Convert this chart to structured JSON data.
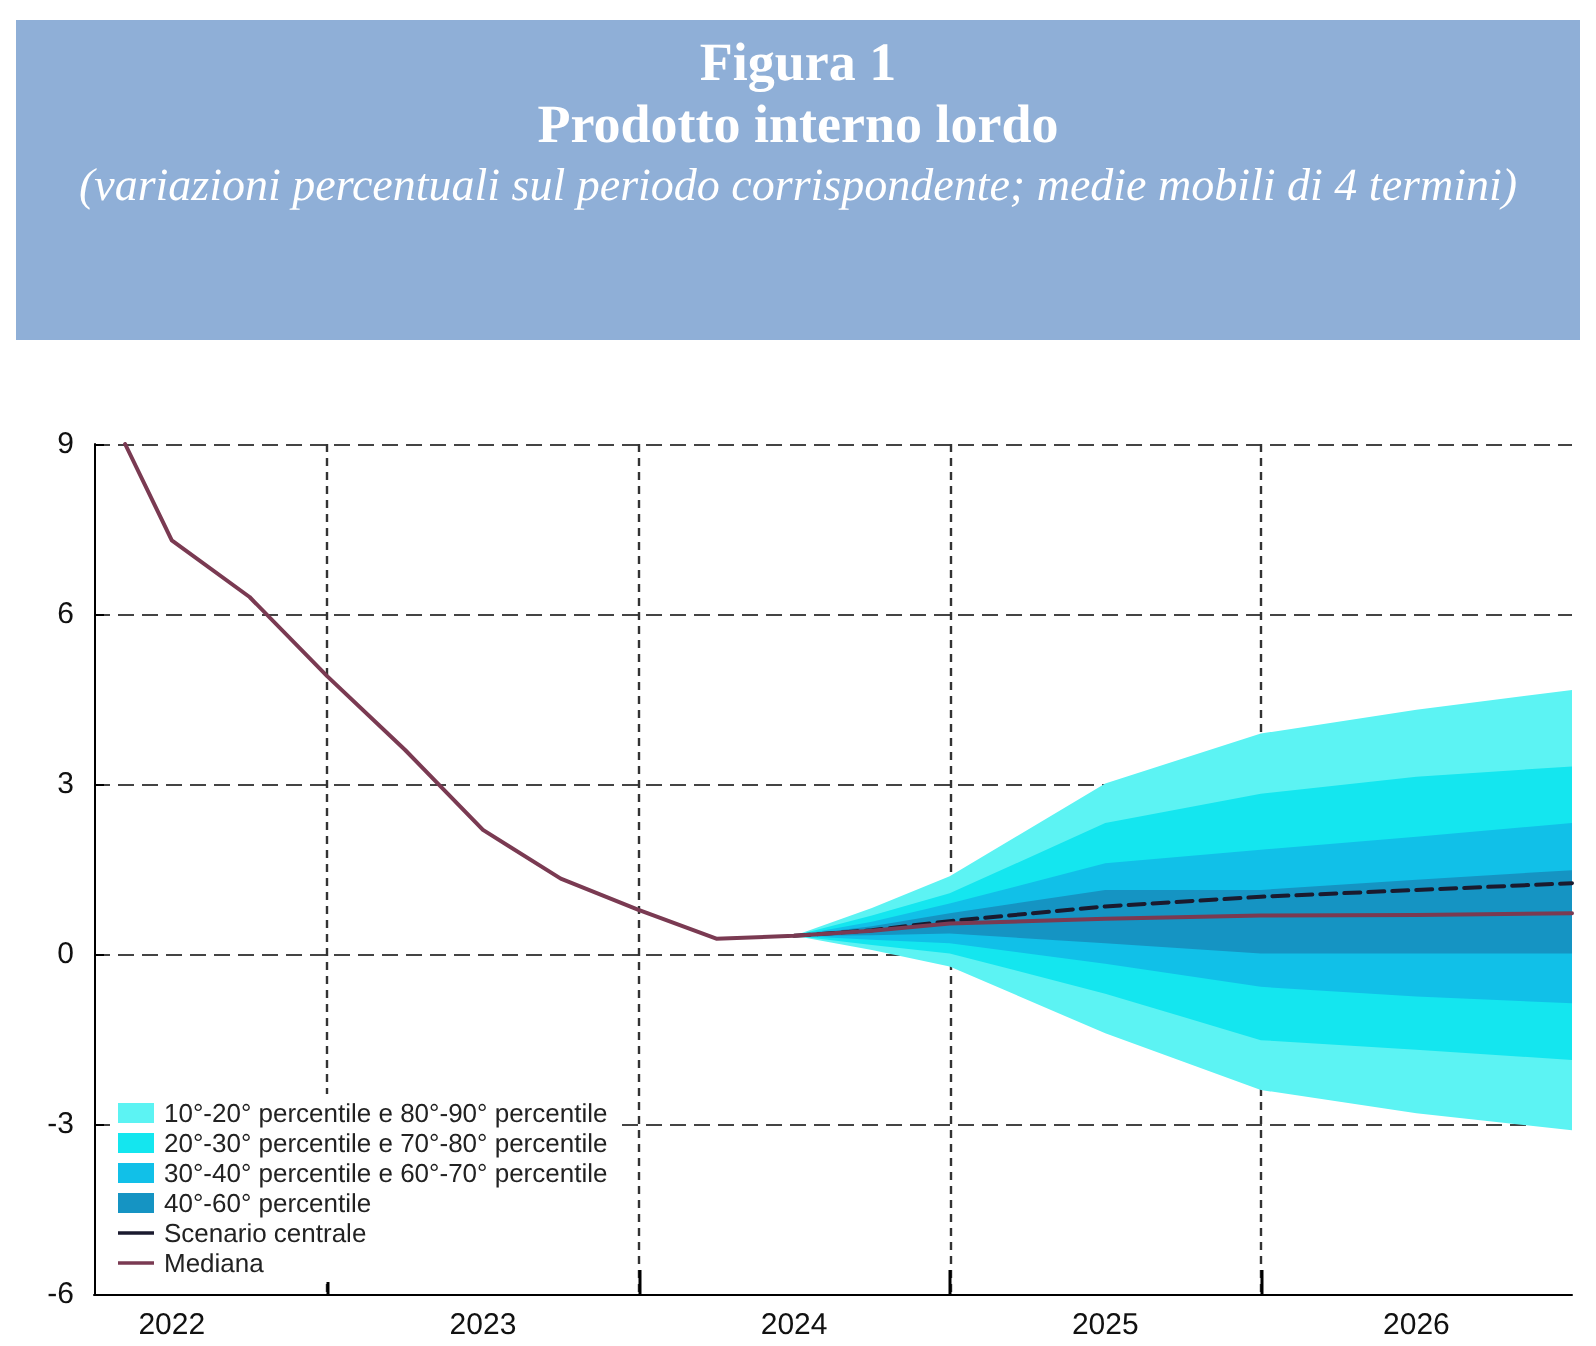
{
  "chart_data": {
    "type": "line",
    "title": "Figura 1",
    "subtitle": "Prodotto interno lordo",
    "annotations": [
      "(variazioni percentuali sul periodo corrispondente; medie mobili di 4 termini)"
    ],
    "xlim": [
      2022.25,
      2027
    ],
    "ylim": [
      -6,
      9
    ],
    "xticks": [
      {
        "value": 2022.5,
        "label": "2022"
      },
      {
        "value": 2023,
        "label": null
      },
      {
        "value": 2023.5,
        "label": "2023"
      },
      {
        "value": 2024,
        "label": null
      },
      {
        "value": 2024.5,
        "label": "2024"
      },
      {
        "value": 2025,
        "label": null
      },
      {
        "value": 2025.5,
        "label": "2025"
      },
      {
        "value": 2026,
        "label": null
      },
      {
        "value": 2026.5,
        "label": "2026"
      }
    ],
    "yticks": [
      -6,
      -3,
      0,
      3,
      6,
      9
    ],
    "grid": true,
    "legend": "bottom left",
    "marker": "none",
    "series": [
      {
        "type": "area",
        "name": "10°-20° percentile e 80°-90° percentile",
        "color": "#5cf3f3",
        "x": [
          2024.5,
          2024.75,
          2025,
          2025.5,
          2026,
          2026.5,
          2027
        ],
        "values": [
          null,
          null,
          null,
          null,
          null,
          null,
          null
        ],
        "lower": [
          0.32,
          0.07,
          -0.22,
          -1.4,
          -2.4,
          -2.81,
          -3.11
        ],
        "upper": [
          0.32,
          0.81,
          1.37,
          3.01,
          3.89,
          4.31,
          4.66
        ]
      },
      {
        "type": "area",
        "name": "20°-30° percentile e 70°-80° percentile",
        "color": "#14e6ef",
        "x": [
          2024.5,
          2024.75,
          2025,
          2025.5,
          2026,
          2026.5,
          2027
        ],
        "values": [
          null,
          null,
          null,
          null,
          null,
          null,
          null
        ],
        "lower": [
          0.32,
          0.16,
          0.01,
          -0.7,
          -1.52,
          -1.69,
          -1.87
        ],
        "upper": [
          0.32,
          0.68,
          1.07,
          2.31,
          2.83,
          3.13,
          3.31
        ]
      },
      {
        "type": "area",
        "name": "30°-40° percentile e 60°-70° percentile",
        "color": "#11c0e8",
        "x": [
          2024.5,
          2024.75,
          2025,
          2025.5,
          2026,
          2026.5,
          2027
        ],
        "values": [
          null,
          null,
          null,
          null,
          null,
          null,
          null
        ],
        "lower": [
          0.32,
          0.25,
          0.19,
          -0.17,
          -0.58,
          -0.75,
          -0.87
        ],
        "upper": [
          0.32,
          0.57,
          0.89,
          1.6,
          1.84,
          2.07,
          2.31
        ]
      },
      {
        "type": "area",
        "name": "40°-60° percentile",
        "color": "#1594c3",
        "x": [
          2024.5,
          2024.75,
          2025,
          2025.5,
          2026,
          2026.5,
          2027
        ],
        "values": [
          null,
          null,
          null,
          null,
          null,
          null,
          null
        ],
        "lower": [
          0.32,
          0.33,
          0.36,
          0.19,
          0.01,
          0.01,
          0.01
        ],
        "upper": [
          0.32,
          0.49,
          0.72,
          1.13,
          1.13,
          1.31,
          1.48
        ]
      },
      {
        "name": "Scenario centrale",
        "color": "#1a1a2e",
        "line_style": "dashed",
        "x": [
          2024.5,
          2024.75,
          2025,
          2025.5,
          2026,
          2026.5,
          2027
        ],
        "values": [
          0.32,
          0.42,
          0.58,
          0.84,
          1.01,
          1.13,
          1.25
        ]
      },
      {
        "name": "Mediana",
        "color": "#7a3a52",
        "line_style": "solid",
        "x": [
          2022.35,
          2022.5,
          2022.75,
          2023,
          2023.25,
          2023.5,
          2023.75,
          2024,
          2024.25,
          2024.5,
          2024.75,
          2025,
          2025.5,
          2026,
          2026.5,
          2027
        ],
        "values": [
          9,
          7.3,
          6.3,
          4.9,
          3.6,
          2.19,
          1.33,
          0.78,
          0.27,
          0.32,
          0.41,
          0.54,
          0.62,
          0.68,
          0.69,
          0.72
        ]
      }
    ]
  }
}
